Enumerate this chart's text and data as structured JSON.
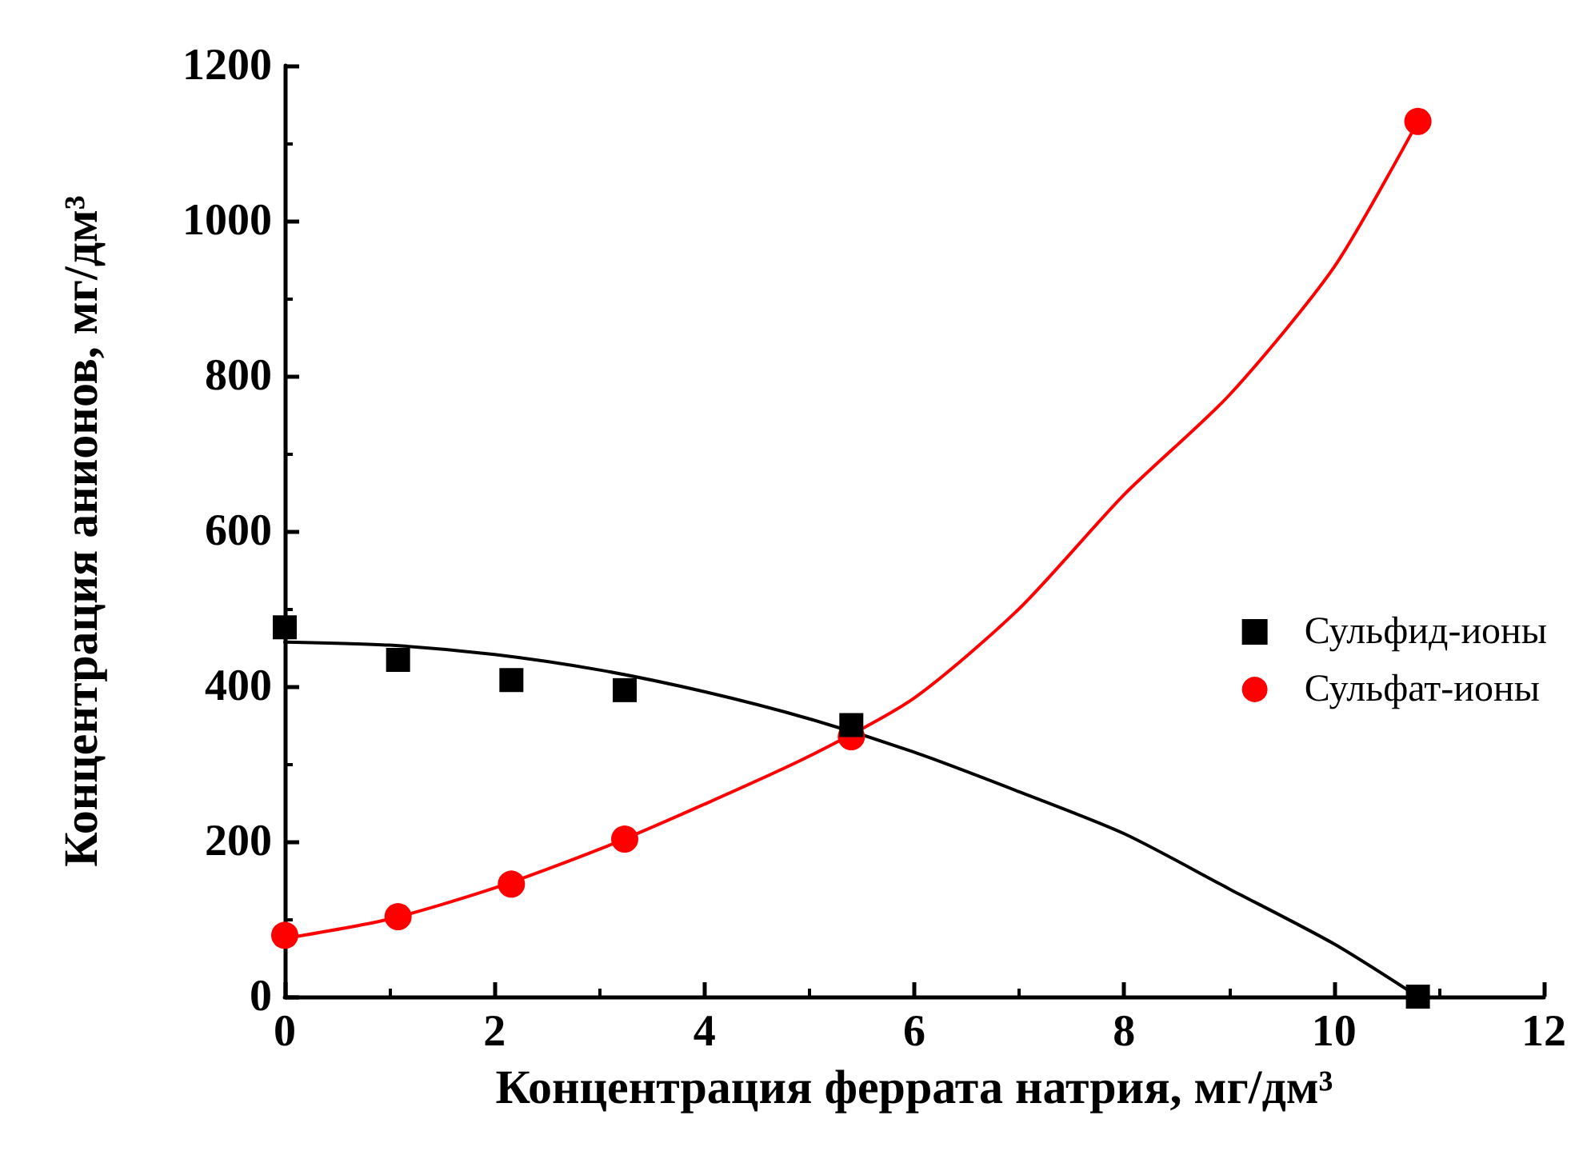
{
  "chart_data": {
    "type": "scatter",
    "xlabel": "Концентрация феррата натрия, мг/дм³",
    "ylabel": "Концентрация анионов, мг/дм³",
    "xlim": [
      0,
      12
    ],
    "xticks": [
      0,
      2,
      4,
      6,
      8,
      10,
      12
    ],
    "ylim": [
      0,
      1200
    ],
    "yticks": [
      0,
      200,
      400,
      600,
      800,
      1000,
      1200
    ],
    "grid": false,
    "legend": "right",
    "series": [
      {
        "name": "Сульфид-ионы",
        "marker": "square",
        "color": "#000000",
        "x": [
          0,
          1.08,
          2.16,
          3.24,
          5.4,
          10.8
        ],
        "values": [
          476,
          434,
          408,
          395,
          350,
          0
        ]
      },
      {
        "name": "Сульфат-ионы",
        "marker": "circle",
        "color": "#ff0000",
        "x": [
          0,
          1.08,
          2.16,
          3.24,
          5.4,
          10.8
        ],
        "values": [
          79,
          103,
          145,
          203,
          335,
          1128
        ]
      },
      {
        "type": "line",
        "marker": "none",
        "line_style": "solid",
        "color": "#000000",
        "x": [
          0,
          1,
          2,
          3,
          4,
          5,
          6,
          7,
          8,
          9,
          10,
          10.8
        ],
        "values": [
          457,
          453,
          441,
          421,
          393,
          358,
          315,
          264,
          210,
          139,
          68,
          0
        ]
      },
      {
        "type": "line",
        "marker": "none",
        "line_style": "solid",
        "color": "#ff0000",
        "x": [
          0,
          1,
          2,
          3,
          4,
          5,
          6,
          7,
          8,
          9,
          10,
          10.8
        ],
        "values": [
          75,
          100,
          140,
          190,
          248,
          310,
          385,
          500,
          647,
          775,
          940,
          1128
        ]
      }
    ]
  }
}
